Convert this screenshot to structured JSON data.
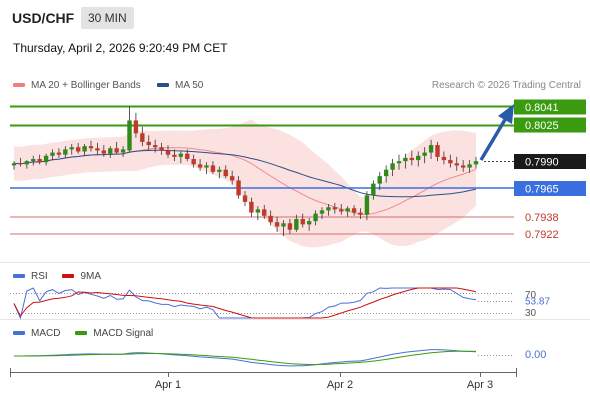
{
  "header": {
    "symbol": "USD/CHF",
    "timeframe": "30 MIN",
    "datetime": "Thursday, April 2, 2026 9:20:49 PM CET"
  },
  "legend": {
    "items": [
      {
        "label": "MA 20 + Bollinger Bands",
        "color": "#f08080"
      },
      {
        "label": "MA 50",
        "color": "#2b4f8a"
      }
    ],
    "copyright": "Research © 2026 Trading Central"
  },
  "chart_data": {
    "type": "candlestick",
    "x_ticks": [
      "Apr 1",
      "Apr 2",
      "Apr 3"
    ],
    "current_price": "0.7990",
    "levels": [
      {
        "value": "0.8041",
        "kind": "resistance",
        "color": "#3a9a10"
      },
      {
        "value": "0.8025",
        "kind": "resistance",
        "color": "#3a9a10"
      },
      {
        "value": "0.7965",
        "kind": "pivot",
        "color": "#3b6fe0"
      },
      {
        "value": "0.7938",
        "kind": "support",
        "color": "#c0392b"
      },
      {
        "value": "0.7922",
        "kind": "support",
        "color": "#c0392b"
      }
    ],
    "candles": [
      [
        0.7986,
        0.799,
        0.7982,
        0.7988
      ],
      [
        0.7988,
        0.7993,
        0.7985,
        0.7987
      ],
      [
        0.7987,
        0.7991,
        0.7983,
        0.799
      ],
      [
        0.799,
        0.7995,
        0.7986,
        0.7992
      ],
      [
        0.7992,
        0.7996,
        0.7987,
        0.7989
      ],
      [
        0.7989,
        0.7997,
        0.7986,
        0.7995
      ],
      [
        0.7995,
        0.8001,
        0.7991,
        0.7998
      ],
      [
        0.7998,
        0.8002,
        0.7993,
        0.7996
      ],
      [
        0.7996,
        0.8004,
        0.7993,
        0.8001
      ],
      [
        0.8001,
        0.8006,
        0.7996,
        0.8003
      ],
      [
        0.8003,
        0.8007,
        0.7997,
        0.7999
      ],
      [
        0.7999,
        0.8006,
        0.7995,
        0.8004
      ],
      [
        0.8004,
        0.8009,
        0.7999,
        0.8002
      ],
      [
        0.8002,
        0.8007,
        0.7996,
        0.8
      ],
      [
        0.8,
        0.8005,
        0.7994,
        0.7997
      ],
      [
        0.7997,
        0.8004,
        0.7993,
        0.8002
      ],
      [
        0.8002,
        0.8008,
        0.7997,
        0.7998
      ],
      [
        0.7998,
        0.8004,
        0.7994,
        0.8001
      ],
      [
        0.8,
        0.8041,
        0.7998,
        0.8028
      ],
      [
        0.8028,
        0.8035,
        0.8012,
        0.8016
      ],
      [
        0.8016,
        0.8022,
        0.8004,
        0.8008
      ],
      [
        0.8008,
        0.8014,
        0.8,
        0.8005
      ],
      [
        0.8005,
        0.801,
        0.7998,
        0.8003
      ],
      [
        0.8003,
        0.8007,
        0.7996,
        0.8
      ],
      [
        0.8,
        0.8005,
        0.7993,
        0.7996
      ],
      [
        0.7996,
        0.8001,
        0.799,
        0.7994
      ],
      [
        0.7994,
        0.7999,
        0.7988,
        0.7997
      ],
      [
        0.7997,
        0.8001,
        0.799,
        0.7992
      ],
      [
        0.7992,
        0.7996,
        0.7984,
        0.7987
      ],
      [
        0.7987,
        0.7992,
        0.7981,
        0.7984
      ],
      [
        0.7984,
        0.7989,
        0.7978,
        0.7986
      ],
      [
        0.7986,
        0.799,
        0.7978,
        0.798
      ],
      [
        0.798,
        0.7985,
        0.7974,
        0.7982
      ],
      [
        0.7982,
        0.7986,
        0.7974,
        0.7976
      ],
      [
        0.7976,
        0.7981,
        0.7968,
        0.7972
      ],
      [
        0.7972,
        0.7976,
        0.7955,
        0.7958
      ],
      [
        0.7958,
        0.7962,
        0.7948,
        0.7952
      ],
      [
        0.7952,
        0.7956,
        0.7938,
        0.7942
      ],
      [
        0.7942,
        0.7948,
        0.7935,
        0.7945
      ],
      [
        0.7945,
        0.7949,
        0.7936,
        0.7939
      ],
      [
        0.7939,
        0.7944,
        0.793,
        0.7933
      ],
      [
        0.7933,
        0.7938,
        0.7924,
        0.7929
      ],
      [
        0.7929,
        0.7935,
        0.792,
        0.7932
      ],
      [
        0.7932,
        0.7936,
        0.7922,
        0.7926
      ],
      [
        0.7926,
        0.794,
        0.7924,
        0.7936
      ],
      [
        0.7936,
        0.7941,
        0.7928,
        0.7931
      ],
      [
        0.7931,
        0.7937,
        0.7925,
        0.7934
      ],
      [
        0.7934,
        0.7944,
        0.793,
        0.7941
      ],
      [
        0.7941,
        0.7947,
        0.7936,
        0.7944
      ],
      [
        0.7944,
        0.795,
        0.7939,
        0.7947
      ],
      [
        0.7947,
        0.7951,
        0.7941,
        0.7945
      ],
      [
        0.7945,
        0.795,
        0.794,
        0.7943
      ],
      [
        0.7943,
        0.7948,
        0.7938,
        0.7946
      ],
      [
        0.7946,
        0.7949,
        0.7939,
        0.7942
      ],
      [
        0.7942,
        0.7946,
        0.7936,
        0.794
      ],
      [
        0.794,
        0.7962,
        0.7935,
        0.7958
      ],
      [
        0.7958,
        0.7972,
        0.7954,
        0.7969
      ],
      [
        0.7969,
        0.798,
        0.7963,
        0.7976
      ],
      [
        0.7976,
        0.7986,
        0.797,
        0.7982
      ],
      [
        0.7982,
        0.7992,
        0.7976,
        0.7988
      ],
      [
        0.7988,
        0.7996,
        0.7982,
        0.799
      ],
      [
        0.799,
        0.7997,
        0.7983,
        0.7993
      ],
      [
        0.7993,
        0.8,
        0.7986,
        0.7991
      ],
      [
        0.7991,
        0.7999,
        0.7985,
        0.7995
      ],
      [
        0.7995,
        0.8003,
        0.7988,
        0.7998
      ],
      [
        0.7998,
        0.801,
        0.7992,
        0.8005
      ],
      [
        0.8005,
        0.8008,
        0.799,
        0.7994
      ],
      [
        0.7994,
        0.7999,
        0.7987,
        0.7991
      ],
      [
        0.7991,
        0.7996,
        0.7984,
        0.7988
      ],
      [
        0.7988,
        0.7994,
        0.7981,
        0.7986
      ],
      [
        0.7986,
        0.7991,
        0.798,
        0.7984
      ],
      [
        0.7984,
        0.7991,
        0.7979,
        0.7987
      ],
      [
        0.7987,
        0.7994,
        0.7983,
        0.799
      ]
    ]
  },
  "rsi": {
    "legend": [
      {
        "label": "RSI",
        "color": "#4a6fd8"
      },
      {
        "label": "9MA",
        "color": "#cc1111"
      }
    ],
    "levels": [
      "70",
      "30"
    ],
    "value": "53.87"
  },
  "macd": {
    "legend": [
      {
        "label": "MACD",
        "color": "#4a6fd8"
      },
      {
        "label": "MACD Signal",
        "color": "#3a9a10"
      }
    ],
    "value": "0.00"
  }
}
